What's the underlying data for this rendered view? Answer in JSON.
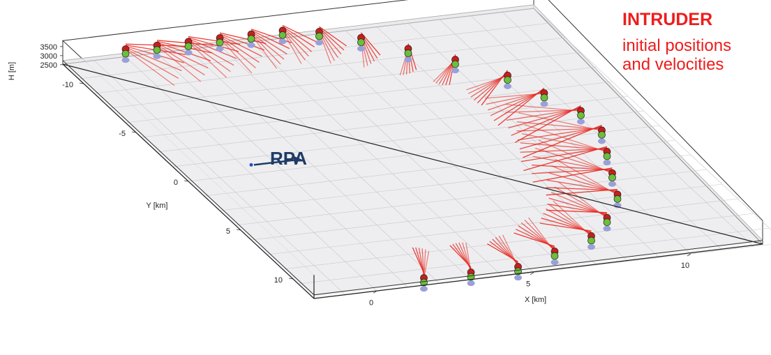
{
  "annotations": {
    "title": "INTRUDER",
    "line1": "initial positions",
    "line2": "and velocities",
    "rpa_label": "RPA"
  },
  "chart_data": {
    "type": "scatter",
    "title": "",
    "xlabel": "X [km]",
    "ylabel": "Y [km]",
    "zlabel": "H [m]",
    "xticks": [
      "0",
      "5",
      "10"
    ],
    "yticks": [
      "-10",
      "-5",
      "0",
      "5",
      "10"
    ],
    "zticks": [
      "2500",
      "3000",
      "3500"
    ],
    "xlim": [
      -2,
      13
    ],
    "ylim": [
      -12,
      12
    ],
    "zlim": [
      2300,
      3600
    ],
    "grid": true,
    "rpa": {
      "x": 0,
      "y": 0,
      "velocity_dir_x": 1
    },
    "colors": {
      "intruder_high": "#c81e1e",
      "intruder_mid": "#6bbf3a",
      "intruder_low": "#9aa0d8",
      "vectors": "#e8281f",
      "rpa": "#1f3b66",
      "annotation": "#ee1c1c"
    },
    "series": [
      {
        "name": "INTRUDER",
        "points": [
          {
            "x": 0,
            "y": -12
          },
          {
            "x": 1,
            "y": -12
          },
          {
            "x": 2,
            "y": -12
          },
          {
            "x": 3,
            "y": -12
          },
          {
            "x": 4,
            "y": -12
          },
          {
            "x": 5,
            "y": -12
          },
          {
            "x": 6,
            "y": -11.5
          },
          {
            "x": 7,
            "y": -10.5
          },
          {
            "x": 8,
            "y": -9
          },
          {
            "x": 9,
            "y": -7.5
          },
          {
            "x": 10,
            "y": -5.5
          },
          {
            "x": 10.5,
            "y": -3.5
          },
          {
            "x": 11,
            "y": -1.5
          },
          {
            "x": 11,
            "y": 0.5
          },
          {
            "x": 10.5,
            "y": 2.5
          },
          {
            "x": 10,
            "y": 4.5
          },
          {
            "x": 9.5,
            "y": 6.5
          },
          {
            "x": 8.5,
            "y": 8.5
          },
          {
            "x": 7.5,
            "y": 10
          },
          {
            "x": 6,
            "y": 11
          },
          {
            "x": 4.5,
            "y": 12
          },
          {
            "x": 3,
            "y": 12
          },
          {
            "x": 1.5,
            "y": 12
          }
        ]
      }
    ]
  }
}
